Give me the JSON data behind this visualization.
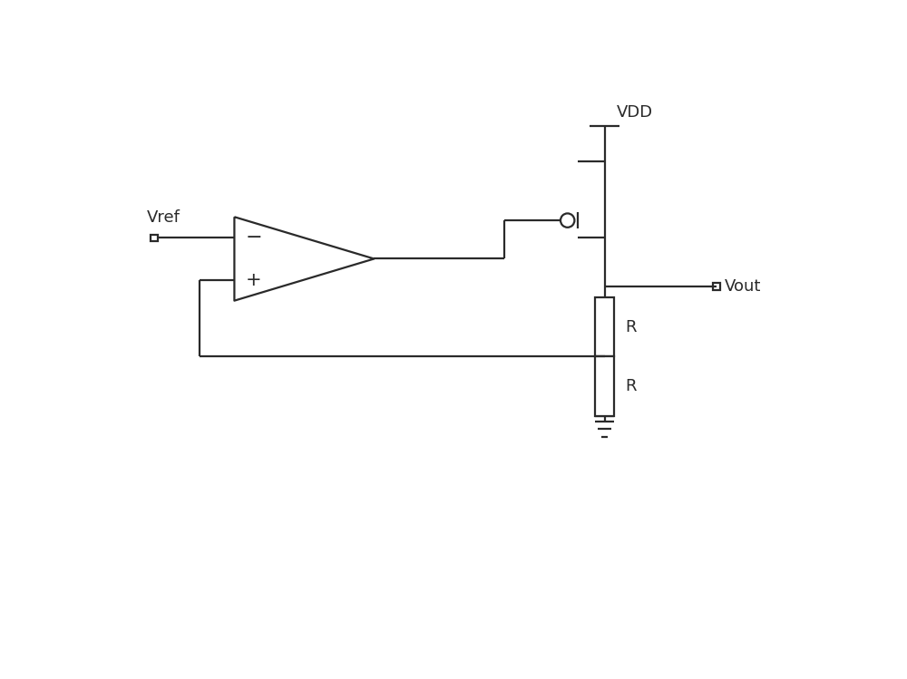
{
  "bg_color": "#ffffff",
  "line_color": "#2a2a2a",
  "line_width": 1.6,
  "fig_width": 10.0,
  "fig_height": 7.49,
  "labels": {
    "vref": "Vref",
    "vdd": "VDD",
    "vout": "Vout",
    "R1": "R",
    "R2": "R"
  },
  "label_fontsize": 13,
  "xlim": [
    0,
    10
  ],
  "ylim": [
    0,
    7.49
  ]
}
